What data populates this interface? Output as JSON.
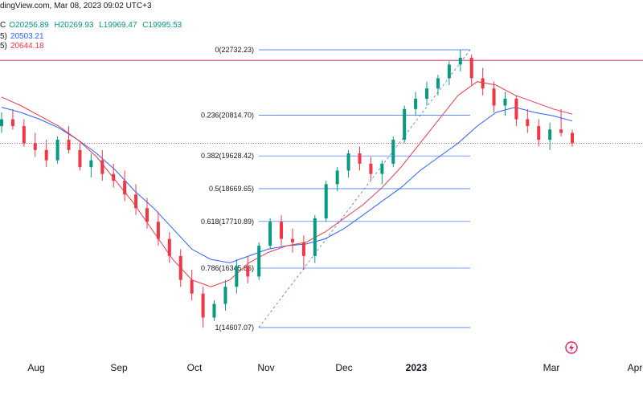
{
  "header": {
    "source_fragment": "dingView.com, Mar 08, 2023 09:02 UTC+3",
    "ohlc": {
      "open_label": "C",
      "open_value": "O20256.89",
      "high": "H20269.93",
      "low": "L19969.47",
      "close": "C19995.53"
    },
    "ma_lines": [
      {
        "label": "5)",
        "value": "20503.21",
        "color": "#2962ff"
      },
      {
        "label": "5)",
        "value": "20644.18",
        "color": "#f23645"
      }
    ]
  },
  "chart_data": {
    "type": "candlestick",
    "x_axis_labels": [
      "Aug",
      "Sep",
      "Oct",
      "Nov",
      "Dec",
      "2023",
      "Mar",
      "Apr"
    ],
    "ylim": [
      14000,
      23500
    ],
    "fibonacci": [
      {
        "label": "0(22732.23)",
        "price": 22732.23
      },
      {
        "label": "0.236(20814.70)",
        "price": 20814.7
      },
      {
        "label": "0.382(19628.42)",
        "price": 19628.42
      },
      {
        "label": "0.5(18669.65)",
        "price": 18669.65
      },
      {
        "label": "0.618(17710.89)",
        "price": 17710.89
      },
      {
        "label": "0.786(16345.86)",
        "price": 16345.86
      },
      {
        "label": "1(14607.07)",
        "price": 14607.07
      }
    ],
    "horizontal_line_price": 22422,
    "current_price": 19995.53,
    "ma_blue": [
      21050,
      20900,
      20700,
      20450,
      20100,
      19700,
      19200,
      18600,
      18100,
      17500,
      16900,
      16600,
      16500,
      16700,
      16900,
      17000,
      17050,
      17200,
      17500,
      17900,
      18300,
      18700,
      19200,
      19600,
      20000,
      20500,
      20900,
      21050,
      20900,
      20800,
      20650
    ],
    "ma_red": [
      21350,
      21100,
      20800,
      20500,
      20100,
      19600,
      18900,
      18200,
      17400,
      16600,
      16000,
      15800,
      16000,
      16500,
      16800,
      17000,
      17100,
      17400,
      17800,
      18200,
      18700,
      19300,
      20000,
      20700,
      21400,
      21800,
      21700,
      21400,
      21200,
      21000,
      20850
    ],
    "candles": [
      [
        20500,
        20900,
        20300,
        20700
      ],
      [
        20700,
        21000,
        20400,
        20500
      ],
      [
        20500,
        20700,
        19900,
        20000
      ],
      [
        20000,
        20300,
        19600,
        19800
      ],
      [
        19800,
        20100,
        19300,
        19500
      ],
      [
        19500,
        20200,
        19400,
        20100
      ],
      [
        20100,
        20500,
        19700,
        19800
      ],
      [
        19800,
        20000,
        19200,
        19300
      ],
      [
        19300,
        19700,
        19000,
        19500
      ],
      [
        19500,
        19800,
        18900,
        19100
      ],
      [
        19100,
        19400,
        18700,
        18900
      ],
      [
        18900,
        19200,
        18300,
        18500
      ],
      [
        18500,
        18800,
        17900,
        18100
      ],
      [
        18100,
        18400,
        17500,
        17700
      ],
      [
        17700,
        18000,
        17000,
        17200
      ],
      [
        17200,
        17400,
        16500,
        16700
      ],
      [
        16700,
        16900,
        15800,
        16000
      ],
      [
        16000,
        16300,
        15400,
        15600
      ],
      [
        15600,
        15800,
        14600,
        14900
      ],
      [
        14900,
        15400,
        14800,
        15300
      ],
      [
        15300,
        16000,
        15100,
        15800
      ],
      [
        15800,
        16600,
        15600,
        16400
      ],
      [
        16400,
        16700,
        15900,
        16100
      ],
      [
        16100,
        17100,
        16000,
        17000
      ],
      [
        17000,
        17800,
        16900,
        17700
      ],
      [
        17700,
        17900,
        17000,
        17200
      ],
      [
        17200,
        17500,
        16800,
        17100
      ],
      [
        17100,
        17300,
        16300,
        16700
      ],
      [
        16700,
        17900,
        16500,
        17800
      ],
      [
        17800,
        18900,
        17700,
        18800
      ],
      [
        18800,
        19300,
        18600,
        19200
      ],
      [
        19200,
        19800,
        19000,
        19700
      ],
      [
        19700,
        19900,
        19200,
        19400
      ],
      [
        19400,
        19600,
        18900,
        19100
      ],
      [
        19100,
        19500,
        18800,
        19400
      ],
      [
        19400,
        20200,
        19300,
        20100
      ],
      [
        20100,
        21100,
        20000,
        21000
      ],
      [
        21000,
        21500,
        20800,
        21300
      ],
      [
        21300,
        21800,
        21100,
        21600
      ],
      [
        21600,
        22000,
        21400,
        21900
      ],
      [
        21900,
        22400,
        21700,
        22300
      ],
      [
        22300,
        22732,
        22100,
        22500
      ],
      [
        22500,
        22600,
        21700,
        21900
      ],
      [
        21900,
        22200,
        21400,
        21600
      ],
      [
        21600,
        21800,
        20900,
        21100
      ],
      [
        21100,
        21500,
        20800,
        21300
      ],
      [
        21300,
        21400,
        20500,
        20700
      ],
      [
        20700,
        21000,
        20300,
        20500
      ],
      [
        20500,
        20700,
        19900,
        20100
      ],
      [
        20100,
        20600,
        19800,
        20400
      ],
      [
        20400,
        21000,
        20200,
        20300
      ],
      [
        20300,
        20400,
        19900,
        20000
      ]
    ]
  }
}
